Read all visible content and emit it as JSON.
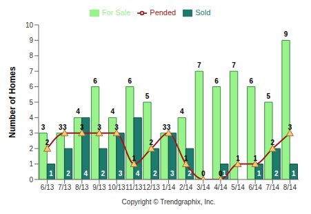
{
  "chart_data": {
    "type": "bar",
    "y_label": "Number of Homes",
    "annotations": [
      "Copyright © Trendgraphix, Inc."
    ],
    "categories": [
      "6/13",
      "7/13",
      "8/13",
      "9/13",
      "10/13",
      "11/13",
      "12/13",
      "1/14",
      "2/14",
      "3/14",
      "4/14",
      "5/14",
      "6/14",
      "7/14",
      "8/14"
    ],
    "series": [
      {
        "name": "For Sale",
        "type": "bar",
        "color": "#99f28c",
        "values": [
          3,
          3,
          4,
          6,
          4,
          6,
          5,
          3,
          4,
          7,
          6,
          7,
          6,
          5,
          9
        ]
      },
      {
        "name": "Sold",
        "type": "bar",
        "color": "#1d7a6c",
        "values": [
          1,
          2,
          4,
          2,
          3,
          4,
          2,
          3,
          2,
          0,
          1,
          0,
          1,
          2,
          1
        ]
      },
      {
        "name": "Pended",
        "type": "line",
        "color": "#a01818",
        "marker": "triangle",
        "line_style": "solid",
        "values": [
          2,
          3,
          3,
          3,
          3,
          1,
          2,
          3,
          1,
          0,
          0,
          1,
          1,
          2,
          3
        ]
      }
    ],
    "ylim": [
      0,
      10
    ],
    "yticks": [
      0,
      1,
      2,
      3,
      4,
      5,
      6,
      7,
      8,
      9,
      10
    ],
    "grid": false,
    "legend": "top",
    "data_labels": true
  }
}
